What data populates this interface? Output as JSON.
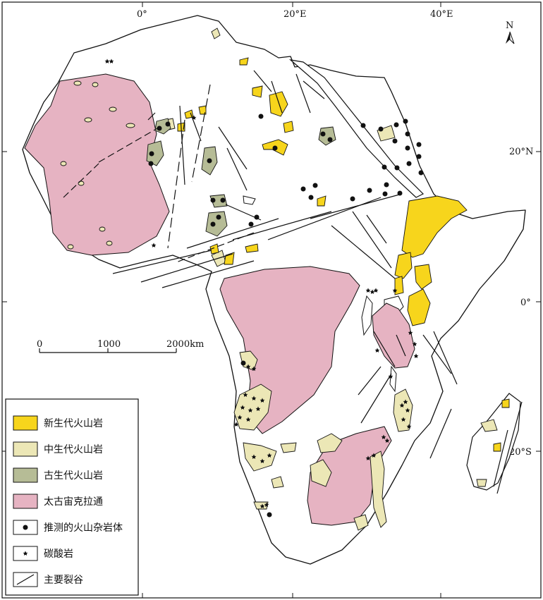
{
  "graticule": {
    "top": [
      "0°",
      "20°E",
      "40°E"
    ],
    "right": [
      "20°N",
      "0°",
      "20°S"
    ]
  },
  "north": "N",
  "scale": {
    "ticks": [
      "0",
      "1000",
      "2000km"
    ]
  },
  "legend": [
    {
      "key": "cenozoic",
      "label": "新生代火山岩",
      "color": "#f7d51c"
    },
    {
      "key": "mesozoic",
      "label": "中生代火山岩",
      "color": "#ece7b6"
    },
    {
      "key": "paleozoic",
      "label": "古生代火山岩",
      "color": "#b6bc96"
    },
    {
      "key": "craton",
      "label": "太古宙克拉通",
      "color": "#e6b3c2"
    },
    {
      "key": "complex",
      "label": "推测的火山杂岩体"
    },
    {
      "key": "carbonatite",
      "label": "碳酸岩"
    },
    {
      "key": "rift",
      "label": "主要裂谷"
    }
  ]
}
